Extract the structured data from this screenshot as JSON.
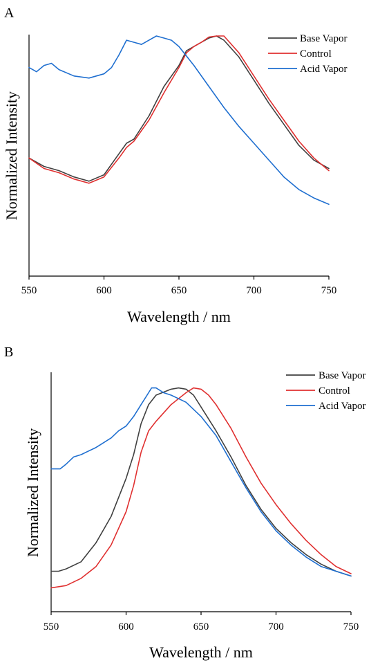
{
  "chart_data": [
    {
      "type": "line",
      "panel_label": "A",
      "xlabel": "Wavelength / nm",
      "ylabel": "Normalized Intensity",
      "xlim": [
        550,
        750
      ],
      "ylim": [
        0,
        1
      ],
      "x_ticks": [
        550,
        600,
        650,
        700,
        750
      ],
      "y_ticks_shown": false,
      "grid": false,
      "legend_position": "top-right",
      "series": [
        {
          "name": "Base Vapor",
          "color": "#404040",
          "points": [
            [
              550,
              0.42
            ],
            [
              560,
              0.38
            ],
            [
              570,
              0.36
            ],
            [
              580,
              0.33
            ],
            [
              590,
              0.31
            ],
            [
              600,
              0.34
            ],
            [
              610,
              0.44
            ],
            [
              615,
              0.49
            ],
            [
              620,
              0.51
            ],
            [
              630,
              0.62
            ],
            [
              640,
              0.76
            ],
            [
              650,
              0.86
            ],
            [
              655,
              0.93
            ],
            [
              660,
              0.95
            ],
            [
              665,
              0.97
            ],
            [
              670,
              0.99
            ],
            [
              675,
              1.0
            ],
            [
              680,
              0.98
            ],
            [
              690,
              0.9
            ],
            [
              700,
              0.79
            ],
            [
              710,
              0.68
            ],
            [
              720,
              0.58
            ],
            [
              730,
              0.48
            ],
            [
              740,
              0.41
            ],
            [
              750,
              0.37
            ]
          ]
        },
        {
          "name": "Control",
          "color": "#e03030",
          "points": [
            [
              550,
              0.42
            ],
            [
              560,
              0.37
            ],
            [
              570,
              0.35
            ],
            [
              580,
              0.32
            ],
            [
              590,
              0.3
            ],
            [
              600,
              0.33
            ],
            [
              610,
              0.42
            ],
            [
              615,
              0.47
            ],
            [
              620,
              0.5
            ],
            [
              630,
              0.6
            ],
            [
              640,
              0.73
            ],
            [
              650,
              0.85
            ],
            [
              655,
              0.92
            ],
            [
              660,
              0.95
            ],
            [
              665,
              0.97
            ],
            [
              670,
              0.995
            ],
            [
              675,
              1.0
            ],
            [
              680,
              1.0
            ],
            [
              690,
              0.92
            ],
            [
              700,
              0.81
            ],
            [
              710,
              0.7
            ],
            [
              720,
              0.6
            ],
            [
              730,
              0.5
            ],
            [
              740,
              0.42
            ],
            [
              750,
              0.36
            ]
          ]
        },
        {
          "name": "Acid Vapor",
          "color": "#1f6fd0",
          "points": [
            [
              550,
              0.85
            ],
            [
              555,
              0.83
            ],
            [
              560,
              0.86
            ],
            [
              565,
              0.87
            ],
            [
              570,
              0.84
            ],
            [
              580,
              0.81
            ],
            [
              590,
              0.8
            ],
            [
              600,
              0.82
            ],
            [
              605,
              0.85
            ],
            [
              610,
              0.91
            ],
            [
              615,
              0.98
            ],
            [
              620,
              0.97
            ],
            [
              625,
              0.96
            ],
            [
              630,
              0.98
            ],
            [
              635,
              1.0
            ],
            [
              640,
              0.99
            ],
            [
              645,
              0.98
            ],
            [
              650,
              0.95
            ],
            [
              660,
              0.86
            ],
            [
              670,
              0.76
            ],
            [
              680,
              0.66
            ],
            [
              690,
              0.57
            ],
            [
              700,
              0.49
            ],
            [
              710,
              0.41
            ],
            [
              720,
              0.33
            ],
            [
              730,
              0.27
            ],
            [
              740,
              0.23
            ],
            [
              750,
              0.2
            ]
          ]
        }
      ]
    },
    {
      "type": "line",
      "panel_label": "B",
      "xlabel": "Wavelength / nm",
      "ylabel": "Normalized Intensity",
      "xlim": [
        550,
        750
      ],
      "ylim": [
        0,
        1
      ],
      "x_ticks": [
        550,
        600,
        650,
        700,
        750
      ],
      "y_ticks_shown": false,
      "grid": false,
      "legend_position": "top-right",
      "series": [
        {
          "name": "Base Vapor",
          "color": "#404040",
          "points": [
            [
              550,
              0.17
            ],
            [
              555,
              0.17
            ],
            [
              560,
              0.18
            ],
            [
              570,
              0.21
            ],
            [
              580,
              0.29
            ],
            [
              590,
              0.4
            ],
            [
              600,
              0.56
            ],
            [
              605,
              0.66
            ],
            [
              610,
              0.79
            ],
            [
              615,
              0.87
            ],
            [
              620,
              0.91
            ],
            [
              630,
              0.935
            ],
            [
              635,
              0.94
            ],
            [
              640,
              0.935
            ],
            [
              645,
              0.91
            ],
            [
              650,
              0.86
            ],
            [
              660,
              0.76
            ],
            [
              670,
              0.65
            ],
            [
              680,
              0.53
            ],
            [
              690,
              0.43
            ],
            [
              700,
              0.35
            ],
            [
              710,
              0.29
            ],
            [
              720,
              0.24
            ],
            [
              730,
              0.2
            ],
            [
              740,
              0.17
            ],
            [
              750,
              0.15
            ]
          ]
        },
        {
          "name": "Control",
          "color": "#e03030",
          "points": [
            [
              550,
              0.1
            ],
            [
              560,
              0.11
            ],
            [
              570,
              0.14
            ],
            [
              580,
              0.19
            ],
            [
              590,
              0.28
            ],
            [
              600,
              0.42
            ],
            [
              605,
              0.53
            ],
            [
              610,
              0.67
            ],
            [
              615,
              0.76
            ],
            [
              620,
              0.8
            ],
            [
              630,
              0.87
            ],
            [
              640,
              0.92
            ],
            [
              645,
              0.94
            ],
            [
              650,
              0.935
            ],
            [
              655,
              0.91
            ],
            [
              660,
              0.87
            ],
            [
              670,
              0.77
            ],
            [
              680,
              0.65
            ],
            [
              690,
              0.54
            ],
            [
              700,
              0.45
            ],
            [
              710,
              0.37
            ],
            [
              720,
              0.3
            ],
            [
              730,
              0.24
            ],
            [
              740,
              0.19
            ],
            [
              750,
              0.16
            ]
          ]
        },
        {
          "name": "Acid Vapor",
          "color": "#1f6fd0",
          "points": [
            [
              550,
              0.6
            ],
            [
              556,
              0.6
            ],
            [
              560,
              0.62
            ],
            [
              565,
              0.65
            ],
            [
              570,
              0.66
            ],
            [
              580,
              0.69
            ],
            [
              590,
              0.73
            ],
            [
              595,
              0.76
            ],
            [
              600,
              0.78
            ],
            [
              605,
              0.82
            ],
            [
              610,
              0.87
            ],
            [
              615,
              0.92
            ],
            [
              617,
              0.94
            ],
            [
              620,
              0.94
            ],
            [
              625,
              0.92
            ],
            [
              630,
              0.91
            ],
            [
              640,
              0.88
            ],
            [
              650,
              0.82
            ],
            [
              660,
              0.74
            ],
            [
              670,
              0.63
            ],
            [
              680,
              0.52
            ],
            [
              690,
              0.42
            ],
            [
              700,
              0.34
            ],
            [
              710,
              0.28
            ],
            [
              720,
              0.23
            ],
            [
              730,
              0.19
            ],
            [
              740,
              0.17
            ],
            [
              750,
              0.15
            ]
          ]
        }
      ]
    }
  ]
}
